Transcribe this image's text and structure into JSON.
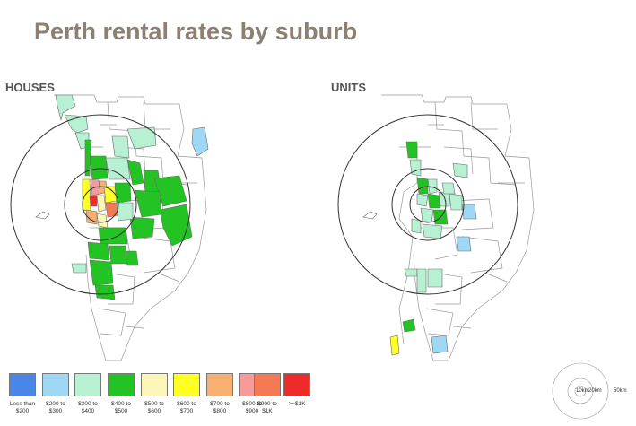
{
  "title": "Perth rental rates by suburb",
  "panels": {
    "houses": {
      "label": "HOUSES"
    },
    "units": {
      "label": "UNITS"
    }
  },
  "legend": [
    {
      "label": "Less than $200",
      "color": "#4a86e8"
    },
    {
      "label": "$200 to $300",
      "color": "#9fd8f5"
    },
    {
      "label": "$300 to $400",
      "color": "#b7f0d2"
    },
    {
      "label": "$400 to $500",
      "color": "#22c322"
    },
    {
      "label": "$500 to $600",
      "color": "#fbf6b8"
    },
    {
      "label": "$600 to $700",
      "color": "#ffff22"
    },
    {
      "label": "$700 to $800",
      "color": "#f8b070"
    },
    {
      "label": "$800 to $900",
      "color": "#f79a9a"
    },
    {
      "label": "$900 to $1K",
      "color": "#f37a55"
    },
    {
      "label": ">=$1K",
      "color": "#ee2a2a"
    }
  ],
  "scale": {
    "r1": "10km",
    "r2": "20km",
    "r3": "50km"
  }
}
